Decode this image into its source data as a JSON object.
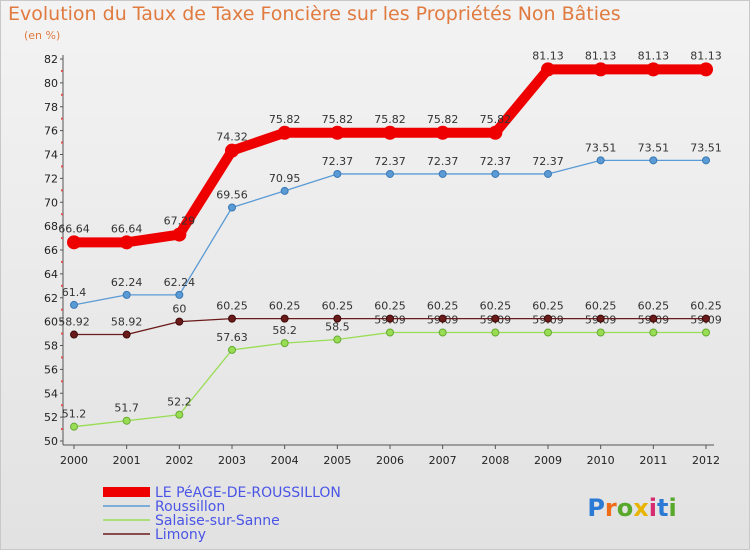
{
  "title": "Evolution du Taux de Taxe Foncière sur les Propriétés Non Bâties",
  "unit": "(en %)",
  "watermark": "Proxiti",
  "chart_data": {
    "type": "line",
    "x": [
      "2000",
      "2001",
      "2002",
      "2003",
      "2004",
      "2005",
      "2006",
      "2007",
      "2008",
      "2009",
      "2010",
      "2011",
      "2012"
    ],
    "ylim": [
      50,
      82
    ],
    "yticks": [
      50,
      52,
      54,
      56,
      58,
      60,
      62,
      64,
      66,
      68,
      70,
      72,
      74,
      76,
      78,
      80,
      82
    ],
    "grid": false,
    "legend_position": "bottom-left",
    "series": [
      {
        "name": "LE PéAGE-DE-ROUSSILLON",
        "color": "#ee0000",
        "values": [
          66.64,
          66.64,
          67.29,
          74.32,
          75.82,
          75.82,
          75.82,
          75.82,
          75.82,
          81.13,
          81.13,
          81.13,
          81.13
        ],
        "labels": [
          "66.64",
          "66.64",
          "67.29",
          "74.32",
          "75.82",
          "75.82",
          "75.82",
          "75.82",
          "75.82",
          "81.13",
          "81.13",
          "81.13",
          "81.13"
        ]
      },
      {
        "name": "Roussillon",
        "color": "#5b9bd5",
        "values": [
          61.4,
          62.24,
          62.24,
          69.56,
          70.95,
          72.37,
          72.37,
          72.37,
          72.37,
          72.37,
          73.51,
          73.51,
          73.51
        ],
        "labels": [
          "61.4",
          "62.24",
          "62.24",
          "69.56",
          "70.95",
          "72.37",
          "72.37",
          "72.37",
          "72.37",
          "72.37",
          "73.51",
          "73.51",
          "73.51"
        ]
      },
      {
        "name": "Salaise-sur-Sanne",
        "color": "#99dd55",
        "values": [
          51.2,
          51.7,
          52.2,
          57.63,
          58.2,
          58.5,
          59.09,
          59.09,
          59.09,
          59.09,
          59.09,
          59.09,
          59.09
        ],
        "labels": [
          "51.2",
          "51.7",
          "52.2",
          "57.63",
          "58.2",
          "58.5",
          "59.09",
          "59.09",
          "59.09",
          "59.09",
          "59.09",
          "59.09",
          "59.09"
        ]
      },
      {
        "name": "Limony",
        "color": "#6b1a1a",
        "values": [
          58.92,
          58.92,
          60,
          60.25,
          60.25,
          60.25,
          60.25,
          60.25,
          60.25,
          60.25,
          60.25,
          60.25,
          60.25
        ],
        "labels": [
          "58.92",
          "58.92",
          "60",
          "60.25",
          "60.25",
          "60.25",
          "60.25",
          "60.25",
          "60.25",
          "60.25",
          "60.25",
          "60.25",
          "60.25"
        ]
      }
    ]
  }
}
